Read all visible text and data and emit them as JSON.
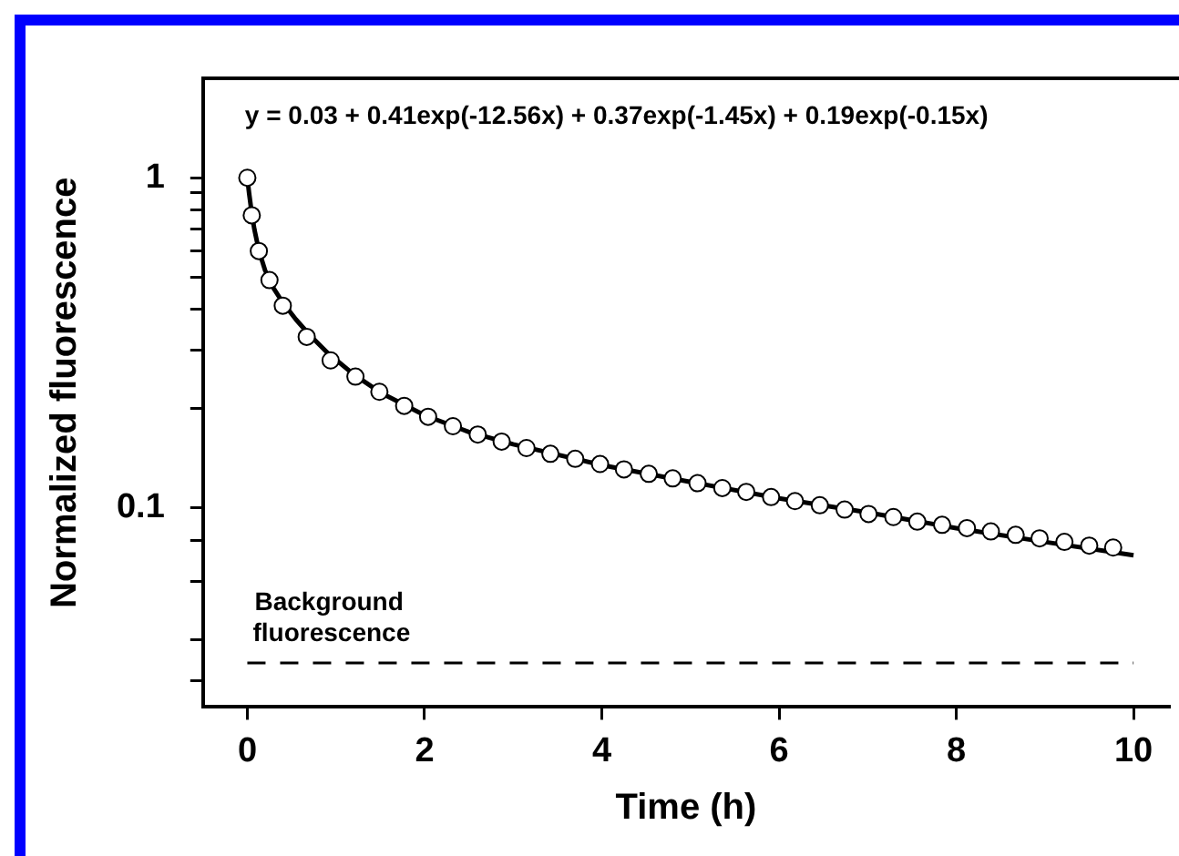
{
  "chart_data": {
    "type": "scatter",
    "xlabel": "Time (h)",
    "ylabel": "Normalized fluorescence",
    "annotations": [
      "y = 0.03 + 0.41exp(-12.56x) + 0.37exp(-1.45x) + 0.19exp(-0.15x)"
    ],
    "log": "y",
    "grid": false,
    "legend": false,
    "xlim": [
      -0.5,
      10.4
    ],
    "xticks": [
      0,
      2,
      4,
      6,
      8,
      10
    ],
    "ylim": [
      0.025,
      2
    ],
    "yticks": [
      {
        "value": 0.03,
        "label": null
      },
      {
        "value": 0.04,
        "label": null
      },
      {
        "value": 0.06,
        "label": null
      },
      {
        "value": 0.08,
        "label": null
      },
      0.1,
      {
        "value": 0.2,
        "label": null
      },
      {
        "value": 0.3,
        "label": null
      },
      {
        "value": 0.4,
        "label": null
      },
      {
        "value": 0.5,
        "label": null
      },
      {
        "value": 0.6,
        "label": null
      },
      {
        "value": 0.7,
        "label": null
      },
      {
        "value": 0.8,
        "label": null
      },
      {
        "value": 0.9,
        "label": null
      },
      1
    ],
    "ref_lines": [
      {
        "axis": "y",
        "value": 0.034,
        "label": "Background\nfluorescence",
        "color": "#000000",
        "line_style": "dashed"
      }
    ],
    "series": [
      {
        "type": "line",
        "color": "#000000",
        "marker": "none",
        "line_style": "solid",
        "x": [
          0,
          0.02,
          0.05,
          0.08,
          0.13,
          0.2,
          0.3,
          0.4,
          0.55,
          0.7,
          0.9,
          1.2,
          1.5,
          2,
          2.5,
          3,
          4,
          5,
          6,
          7,
          8,
          9,
          10
        ],
        "values": [
          1.0,
          0.898,
          0.78,
          0.697,
          0.603,
          0.525,
          0.461,
          0.419,
          0.372,
          0.335,
          0.296,
          0.254,
          0.224,
          0.191,
          0.17,
          0.156,
          0.135,
          0.12,
          0.107,
          0.097,
          0.087,
          0.079,
          0.072
        ]
      },
      {
        "type": "scatter",
        "color": "#000000",
        "marker": "circle",
        "x": [
          0,
          0.05,
          0.13,
          0.25,
          0.4,
          0.67,
          0.94,
          1.22,
          1.49,
          1.77,
          2.04,
          2.32,
          2.6,
          2.87,
          3.15,
          3.42,
          3.7,
          3.98,
          4.25,
          4.53,
          4.8,
          5.08,
          5.36,
          5.63,
          5.91,
          6.18,
          6.46,
          6.74,
          7.01,
          7.29,
          7.56,
          7.84,
          8.12,
          8.39,
          8.67,
          8.94,
          9.22,
          9.5,
          9.77
        ],
        "values": [
          1.0,
          0.77,
          0.6,
          0.49,
          0.41,
          0.33,
          0.28,
          0.25,
          0.225,
          0.204,
          0.189,
          0.177,
          0.167,
          0.159,
          0.152,
          0.146,
          0.141,
          0.136,
          0.131,
          0.127,
          0.123,
          0.119,
          0.115,
          0.112,
          0.108,
          0.105,
          0.102,
          0.099,
          0.096,
          0.094,
          0.091,
          0.089,
          0.087,
          0.085,
          0.083,
          0.081,
          0.079,
          0.077,
          0.076
        ]
      }
    ]
  }
}
